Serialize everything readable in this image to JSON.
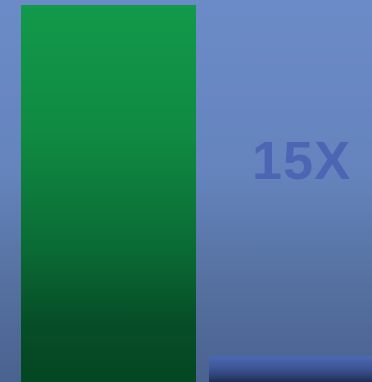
{
  "colors": {
    "bar_green": "#0f8a42",
    "bar_blue": "#3e5696",
    "label": "#4d66b3"
  },
  "annotation": {
    "text": "15X"
  },
  "chart_data": {
    "type": "bar",
    "title": "",
    "xlabel": "",
    "ylabel": "",
    "categories": [
      "",
      ""
    ],
    "values": [
      15,
      1
    ],
    "annotations": [
      "15X"
    ],
    "grid": false,
    "legend": "none"
  }
}
